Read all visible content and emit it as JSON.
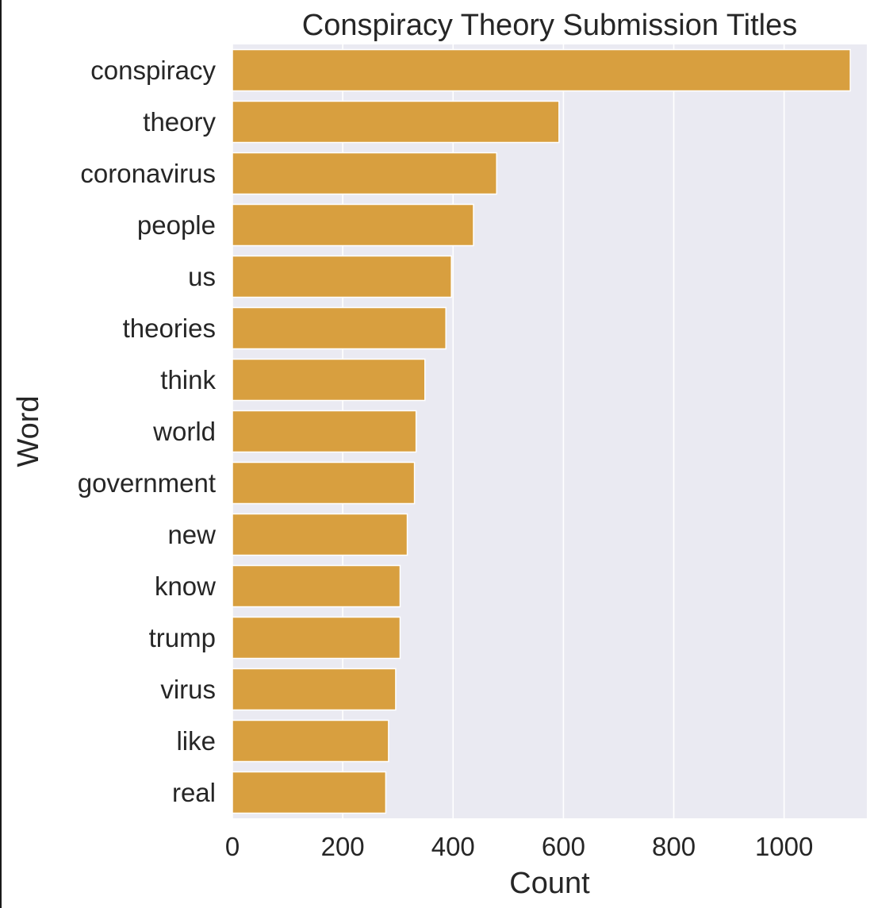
{
  "chart_data": {
    "type": "bar",
    "orientation": "horizontal",
    "title": "Conspiracy Theory Submission Titles",
    "xlabel": "Count",
    "ylabel": "Word",
    "xlim": [
      0,
      1150
    ],
    "xticks": [
      0,
      200,
      400,
      600,
      800,
      1000
    ],
    "grid": true,
    "colors": {
      "bar": "#d89f3f",
      "plot_background": "#eaeaf2",
      "grid": "#ffffff",
      "bar_edge": "#ffffff"
    },
    "categories": [
      "conspiracy",
      "theory",
      "coronavirus",
      "people",
      "us",
      "theories",
      "think",
      "world",
      "government",
      "new",
      "know",
      "trump",
      "virus",
      "like",
      "real"
    ],
    "values": [
      1120,
      592,
      479,
      437,
      397,
      387,
      349,
      333,
      330,
      317,
      304,
      304,
      296,
      283,
      278
    ]
  }
}
